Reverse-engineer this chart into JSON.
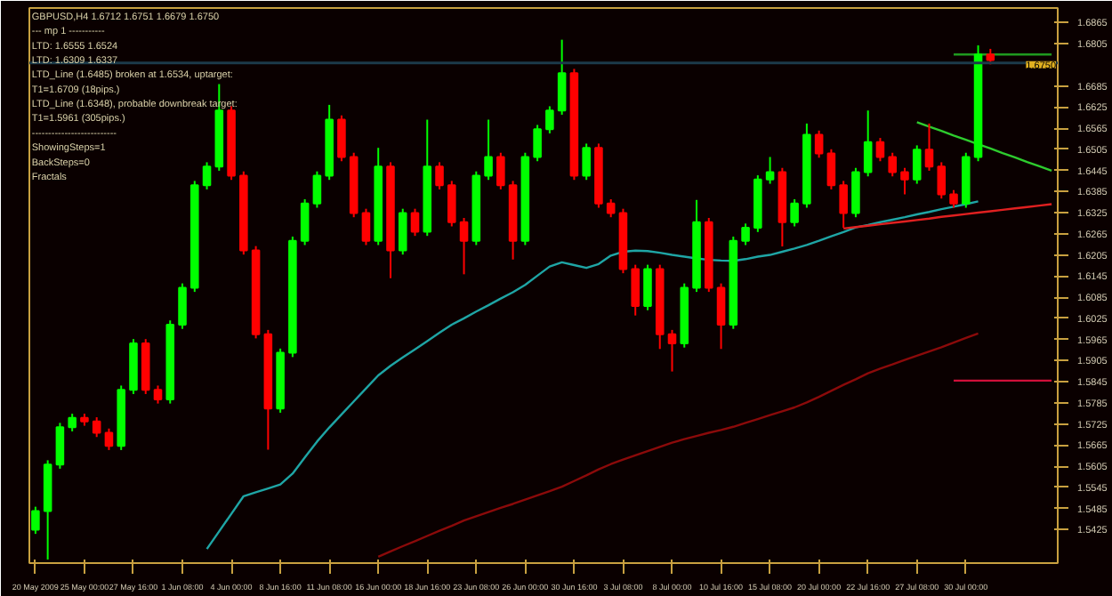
{
  "chart_data": {
    "type": "candlestick",
    "categories": [
      "20 May 2009",
      null,
      null,
      null,
      "25 May 00:00",
      null,
      null,
      null,
      "27 May 16:00",
      null,
      null,
      null,
      "1 Jun 08:00",
      null,
      null,
      null,
      "4 Jun 00:00",
      null,
      null,
      null,
      "8 Jun 16:00",
      null,
      null,
      null,
      "11 Jun 08:00",
      null,
      null,
      null,
      "16 Jun 00:00",
      null,
      null,
      null,
      "18 Jun 16:00",
      null,
      null,
      null,
      "23 Jun 08:00",
      null,
      null,
      null,
      "26 Jun 00:00",
      null,
      null,
      null,
      "30 Jun 16:00",
      null,
      null,
      null,
      "3 Jul 08:00",
      null,
      null,
      null,
      "8 Jul 00:00",
      null,
      null,
      null,
      "10 Jul 16:00",
      null,
      null,
      null,
      "15 Jul 08:00",
      null,
      null,
      null,
      "20 Jul 00:00",
      null,
      null,
      null,
      "22 Jul 16:00",
      null,
      null,
      null,
      "27 Jul 08:00",
      null,
      null,
      null,
      "30 Jul 00:00",
      null,
      null,
      null,
      null,
      null,
      null,
      null
    ],
    "ohlc": [
      [
        1.5425,
        1.549,
        1.5413,
        1.5478
      ],
      [
        1.5478,
        1.5622,
        1.534,
        1.561
      ],
      [
        1.561,
        1.5728,
        1.5598,
        1.5716
      ],
      [
        1.5716,
        1.5754,
        1.5704,
        1.5742
      ],
      [
        1.5742,
        1.5754,
        1.572,
        1.5732
      ],
      [
        1.5732,
        1.5744,
        1.5688,
        1.57
      ],
      [
        1.57,
        1.5712,
        1.5651,
        1.5663
      ],
      [
        1.5663,
        1.5834,
        1.5651,
        1.5822
      ],
      [
        1.5822,
        1.5966,
        1.581,
        1.5954
      ],
      [
        1.5954,
        1.5966,
        1.581,
        1.5822
      ],
      [
        1.5822,
        1.5834,
        1.5783,
        1.5795
      ],
      [
        1.5795,
        1.6019,
        1.5783,
        1.6007
      ],
      [
        1.6007,
        1.6124,
        1.5995,
        1.6112
      ],
      [
        1.6112,
        1.6415,
        1.61,
        1.6403
      ],
      [
        1.6403,
        1.6468,
        1.6391,
        1.6456
      ],
      [
        1.6456,
        1.669,
        1.6444,
        1.6615
      ],
      [
        1.6615,
        1.6627,
        1.6418,
        1.643
      ],
      [
        1.643,
        1.6442,
        1.6206,
        1.6218
      ],
      [
        1.6218,
        1.623,
        1.5968,
        1.598
      ],
      [
        1.598,
        1.5992,
        1.5652,
        1.5769
      ],
      [
        1.5769,
        1.5939,
        1.5757,
        1.5927
      ],
      [
        1.5927,
        1.6257,
        1.5915,
        1.6245
      ],
      [
        1.6245,
        1.6363,
        1.6233,
        1.6351
      ],
      [
        1.6351,
        1.6442,
        1.6339,
        1.643
      ],
      [
        1.643,
        1.6631,
        1.6418,
        1.6589
      ],
      [
        1.6589,
        1.6601,
        1.6471,
        1.6483
      ],
      [
        1.6483,
        1.6495,
        1.6312,
        1.6324
      ],
      [
        1.6324,
        1.6336,
        1.6233,
        1.6245
      ],
      [
        1.6245,
        1.6509,
        1.6233,
        1.6456
      ],
      [
        1.6456,
        1.6468,
        1.6139,
        1.6218
      ],
      [
        1.6218,
        1.6336,
        1.6206,
        1.6324
      ],
      [
        1.6324,
        1.6336,
        1.6259,
        1.6271
      ],
      [
        1.6271,
        1.6589,
        1.6259,
        1.6456
      ],
      [
        1.6456,
        1.6468,
        1.6391,
        1.6403
      ],
      [
        1.6403,
        1.6415,
        1.6286,
        1.6298
      ],
      [
        1.6298,
        1.631,
        1.615,
        1.6245
      ],
      [
        1.6245,
        1.6442,
        1.6233,
        1.643
      ],
      [
        1.643,
        1.6589,
        1.6418,
        1.6483
      ],
      [
        1.6483,
        1.6495,
        1.6391,
        1.6403
      ],
      [
        1.6403,
        1.6415,
        1.6192,
        1.6245
      ],
      [
        1.6245,
        1.6495,
        1.6233,
        1.6483
      ],
      [
        1.6483,
        1.6574,
        1.6471,
        1.6562
      ],
      [
        1.6562,
        1.6627,
        1.655,
        1.6615
      ],
      [
        1.6615,
        1.6816,
        1.6603,
        1.6721
      ],
      [
        1.6721,
        1.6733,
        1.6418,
        1.643
      ],
      [
        1.643,
        1.6521,
        1.6418,
        1.6509
      ],
      [
        1.6509,
        1.6521,
        1.6339,
        1.6351
      ],
      [
        1.6351,
        1.6363,
        1.6312,
        1.6324
      ],
      [
        1.6324,
        1.6336,
        1.6153,
        1.6165
      ],
      [
        1.6165,
        1.6177,
        1.6033,
        1.606
      ],
      [
        1.606,
        1.6177,
        1.6048,
        1.6165
      ],
      [
        1.6165,
        1.6177,
        1.5938,
        1.598
      ],
      [
        1.598,
        1.5992,
        1.5874,
        1.5954
      ],
      [
        1.5954,
        1.6124,
        1.5942,
        1.6112
      ],
      [
        1.6112,
        1.6361,
        1.61,
        1.6298
      ],
      [
        1.6298,
        1.631,
        1.61,
        1.6112
      ],
      [
        1.6112,
        1.6124,
        1.5938,
        1.6007
      ],
      [
        1.6007,
        1.6257,
        1.5995,
        1.6245
      ],
      [
        1.6245,
        1.6294,
        1.6233,
        1.6282
      ],
      [
        1.6282,
        1.6431,
        1.627,
        1.6419
      ],
      [
        1.6419,
        1.6483,
        1.6407,
        1.644
      ],
      [
        1.644,
        1.6452,
        1.6229,
        1.6298
      ],
      [
        1.6298,
        1.6363,
        1.6286,
        1.6351
      ],
      [
        1.6351,
        1.6578,
        1.6339,
        1.6546
      ],
      [
        1.6546,
        1.6558,
        1.6481,
        1.6493
      ],
      [
        1.6493,
        1.6505,
        1.6391,
        1.6403
      ],
      [
        1.6403,
        1.6415,
        1.6282,
        1.6324
      ],
      [
        1.6324,
        1.6452,
        1.6312,
        1.644
      ],
      [
        1.644,
        1.6615,
        1.6428,
        1.6525
      ],
      [
        1.6525,
        1.6537,
        1.6471,
        1.6483
      ],
      [
        1.6483,
        1.6495,
        1.6428,
        1.644
      ],
      [
        1.644,
        1.6452,
        1.6377,
        1.6419
      ],
      [
        1.6419,
        1.6516,
        1.6407,
        1.6504
      ],
      [
        1.6504,
        1.6578,
        1.6444,
        1.6456
      ],
      [
        1.6456,
        1.6468,
        1.6365,
        1.6377
      ],
      [
        1.6377,
        1.6389,
        1.6339,
        1.6351
      ],
      [
        1.6351,
        1.6495,
        1.6339,
        1.6483
      ],
      [
        1.6483,
        1.68,
        1.6471,
        1.6774
      ],
      [
        1.6774,
        1.679,
        1.6746,
        1.6758
      ],
      null,
      null,
      null,
      null,
      null
    ],
    "colors": [
      "#00ff00",
      "#00ff00",
      "#00ff00",
      "#00ff00",
      "#ff0000",
      "#ff0000",
      "#ff0000",
      "#00ff00",
      "#00ff00",
      "#ff0000",
      "#ff0000",
      "#00ff00",
      "#00ff00",
      "#00ff00",
      "#00ff00",
      "#00ff00",
      "#ff0000",
      "#ff0000",
      "#ff0000",
      "#ff0000",
      "#00ff00",
      "#00ff00",
      "#00ff00",
      "#00ff00",
      "#00ff00",
      "#ff0000",
      "#ff0000",
      "#ff0000",
      "#00ff00",
      "#ff0000",
      "#00ff00",
      "#ff0000",
      "#00ff00",
      "#ff0000",
      "#ff0000",
      "#ff0000",
      "#00ff00",
      "#00ff00",
      "#ff0000",
      "#ff0000",
      "#00ff00",
      "#00ff00",
      "#00ff00",
      "#00ff00",
      "#ff0000",
      "#00ff00",
      "#ff0000",
      "#ff0000",
      "#ff0000",
      "#ff0000",
      "#00ff00",
      "#ff0000",
      "#ff0000",
      "#00ff00",
      "#00ff00",
      "#ff0000",
      "#ff0000",
      "#00ff00",
      "#00ff00",
      "#00ff00",
      "#00ff00",
      "#ff0000",
      "#00ff00",
      "#00ff00",
      "#ff0000",
      "#ff0000",
      "#ff0000",
      "#00ff00",
      "#00ff00",
      "#ff0000",
      "#ff0000",
      "#ff0000",
      "#00ff00",
      "#ff0000",
      "#ff0000",
      "#ff0000",
      "#00ff00",
      "#00ff00",
      "#ff0000",
      null,
      null,
      null,
      null,
      null
    ],
    "series": [
      {
        "type": "line",
        "color": "#1fa5a5",
        "values": [
          null,
          null,
          null,
          null,
          null,
          null,
          null,
          null,
          null,
          null,
          null,
          null,
          null,
          null,
          1.537,
          1.542,
          1.547,
          1.552,
          1.5531,
          1.5542,
          1.5553,
          1.5584,
          1.563,
          1.5675,
          1.5715,
          1.5752,
          1.5789,
          1.5826,
          1.5863,
          1.589,
          1.5914,
          1.5937,
          1.596,
          1.5984,
          1.6007,
          1.6025,
          1.6044,
          1.6062,
          1.6081,
          1.6099,
          1.612,
          1.6146,
          1.6172,
          1.6184,
          1.6176,
          1.6168,
          1.6179,
          1.6203,
          1.6214,
          1.6217,
          1.6216,
          1.6211,
          1.6205,
          1.62,
          1.6195,
          1.6191,
          1.6189,
          1.6188,
          1.6193,
          1.62,
          1.6205,
          1.6214,
          1.6223,
          1.6233,
          1.6245,
          1.6258,
          1.627,
          1.6283,
          1.629,
          1.6298,
          1.6305,
          1.6312,
          1.632,
          1.6327,
          1.6335,
          1.6342,
          1.6349,
          1.6357,
          null,
          null,
          null,
          null,
          null,
          null
        ]
      },
      {
        "type": "line",
        "color": "#8b0a0a",
        "values": [
          null,
          null,
          null,
          null,
          null,
          null,
          null,
          null,
          null,
          null,
          null,
          null,
          null,
          null,
          null,
          null,
          null,
          null,
          null,
          null,
          null,
          null,
          null,
          null,
          null,
          null,
          null,
          null,
          1.5348,
          1.5363,
          1.5378,
          1.5392,
          1.5407,
          1.5422,
          1.5436,
          1.5451,
          1.5463,
          1.5475,
          1.5487,
          1.5498,
          1.551,
          1.5522,
          1.5534,
          1.5547,
          1.5563,
          1.5579,
          1.5596,
          1.5611,
          1.5624,
          1.5636,
          1.5648,
          1.566,
          1.5672,
          1.5682,
          1.5691,
          1.57,
          1.5708,
          1.5717,
          1.5728,
          1.5739,
          1.575,
          1.5761,
          1.5772,
          1.5786,
          1.5802,
          1.5819,
          1.5836,
          1.5852,
          1.5869,
          1.5882,
          1.5894,
          1.5907,
          1.5919,
          1.5931,
          1.5943,
          1.5956,
          1.5969,
          1.5982,
          null,
          null,
          null,
          null,
          null,
          null
        ]
      },
      {
        "type": "line",
        "color": "#2ecc2e",
        "values": [
          null,
          null,
          null,
          null,
          null,
          null,
          null,
          null,
          null,
          null,
          null,
          null,
          null,
          null,
          null,
          null,
          null,
          null,
          null,
          null,
          null,
          null,
          null,
          null,
          null,
          null,
          null,
          null,
          null,
          null,
          null,
          null,
          null,
          null,
          null,
          null,
          null,
          null,
          null,
          null,
          null,
          null,
          null,
          null,
          null,
          null,
          null,
          null,
          null,
          null,
          null,
          null,
          null,
          null,
          null,
          null,
          null,
          null,
          null,
          null,
          null,
          null,
          null,
          null,
          null,
          null,
          null,
          null,
          null,
          null,
          null,
          null,
          1.6582,
          1.6569,
          1.6557,
          1.6544,
          1.6532,
          1.6519,
          1.6507,
          1.6494,
          1.6482,
          1.6469,
          1.6457,
          1.6444
        ]
      },
      {
        "type": "line",
        "color": "#e02020",
        "values": [
          null,
          null,
          null,
          null,
          null,
          null,
          null,
          null,
          null,
          null,
          null,
          null,
          null,
          null,
          null,
          null,
          null,
          null,
          null,
          null,
          null,
          null,
          null,
          null,
          null,
          null,
          null,
          null,
          null,
          null,
          null,
          null,
          null,
          null,
          null,
          null,
          null,
          null,
          null,
          null,
          null,
          null,
          null,
          null,
          null,
          null,
          null,
          null,
          null,
          null,
          null,
          null,
          null,
          null,
          null,
          null,
          null,
          null,
          null,
          null,
          null,
          null,
          null,
          null,
          null,
          null,
          1.628,
          1.6284,
          1.6288,
          1.6292,
          1.6296,
          1.63,
          1.6304,
          1.6308,
          1.6313,
          1.6317,
          1.6321,
          1.6325,
          1.6329,
          1.6333,
          1.6337,
          1.6341,
          1.6345,
          1.6349
        ]
      },
      {
        "type": "line",
        "color": "#1f9a1f",
        "values": [
          null,
          null,
          null,
          null,
          null,
          null,
          null,
          null,
          null,
          null,
          null,
          null,
          null,
          null,
          null,
          null,
          null,
          null,
          null,
          null,
          null,
          null,
          null,
          null,
          null,
          null,
          null,
          null,
          null,
          null,
          null,
          null,
          null,
          null,
          null,
          null,
          null,
          null,
          null,
          null,
          null,
          null,
          null,
          null,
          null,
          null,
          null,
          null,
          null,
          null,
          null,
          null,
          null,
          null,
          null,
          null,
          null,
          null,
          null,
          null,
          null,
          null,
          null,
          null,
          null,
          null,
          null,
          null,
          null,
          null,
          null,
          null,
          null,
          null,
          null,
          1.6774,
          1.6774,
          1.6774,
          1.6774,
          1.6774,
          1.6774,
          1.6774,
          1.6774,
          1.6774
        ]
      },
      {
        "type": "line",
        "color": "#d0103a",
        "values": [
          null,
          null,
          null,
          null,
          null,
          null,
          null,
          null,
          null,
          null,
          null,
          null,
          null,
          null,
          null,
          null,
          null,
          null,
          null,
          null,
          null,
          null,
          null,
          null,
          null,
          null,
          null,
          null,
          null,
          null,
          null,
          null,
          null,
          null,
          null,
          null,
          null,
          null,
          null,
          null,
          null,
          null,
          null,
          null,
          null,
          null,
          null,
          null,
          null,
          null,
          null,
          null,
          null,
          null,
          null,
          null,
          null,
          null,
          null,
          null,
          null,
          null,
          null,
          null,
          null,
          null,
          null,
          null,
          null,
          null,
          null,
          null,
          null,
          null,
          null,
          1.5848,
          1.5848,
          1.5848,
          1.5848,
          1.5848,
          1.5848,
          1.5848,
          1.5848,
          1.5848
        ]
      }
    ],
    "ref_lines": [
      {
        "axis": "y",
        "value": 1.675,
        "label": "1.6750",
        "color": "#1c3a4a"
      }
    ],
    "ylim": [
      1.533,
      1.6906
    ],
    "yticks": [
      1.5425,
      1.5485,
      1.5545,
      1.5605,
      1.5665,
      1.5725,
      1.5785,
      1.5845,
      1.5905,
      1.5965,
      1.6025,
      1.6085,
      1.6145,
      1.6205,
      1.6265,
      1.6325,
      1.6385,
      1.6445,
      1.6505,
      1.6565,
      1.6625,
      1.6685,
      1.6805,
      1.6865
    ],
    "annotations": [
      "GBPUSD,H4  1.6712 1.6751 1.6679 1.6750",
      "---  mp 1  -----------",
      "LTD: 1.6555  1.6524",
      "LTD: 1.6309  1.6337",
      "LTD_Line (1.6485) broken at 1.6534, uptarget:",
      "T1=1.6709 (18pips.)",
      "LTD_Line (1.6348), probable downbreak target:",
      "T1=1.5961 (305pips.)",
      "--------------------------",
      "ShowingSteps=1",
      "BackSteps=0",
      "Fractals"
    ]
  }
}
